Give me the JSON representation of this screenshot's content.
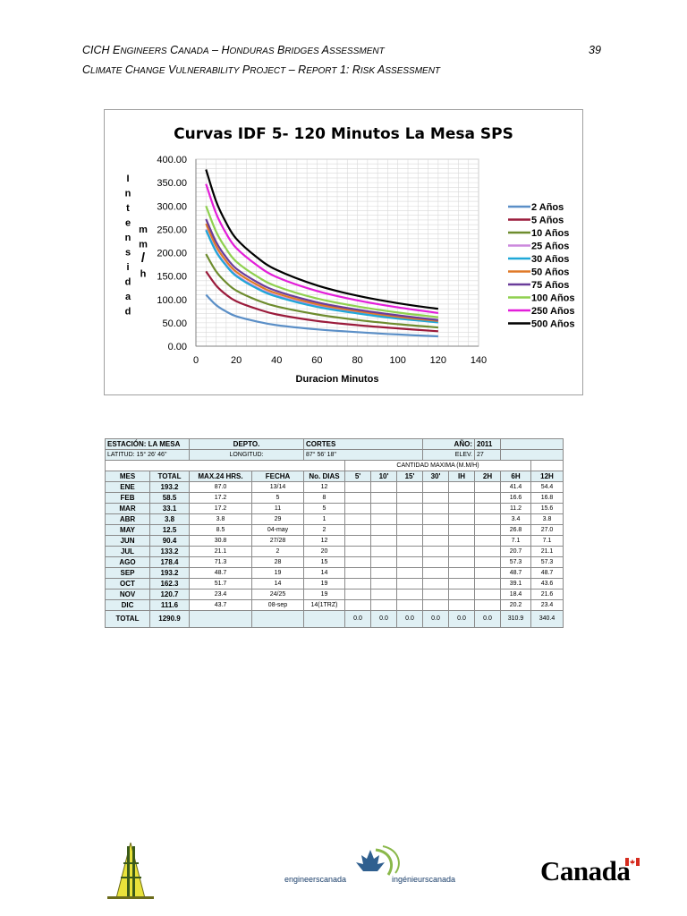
{
  "header": {
    "line1_big_1": "CICH E",
    "line1_sc_1": "ngineers",
    "line1_big_2": " C",
    "line1_sc_2": "anada",
    "line1_mid": " – H",
    "line1_sc_3": "onduras",
    "line1_big_3": " B",
    "line1_sc_4": "ridges",
    "line1_big_4": " A",
    "line1_sc_5": "ssessment",
    "page_number": "39",
    "line2_big_1": "C",
    "line2_sc_1": "limate",
    "line2_big_2": " C",
    "line2_sc_2": "hange",
    "line2_big_3": " V",
    "line2_sc_3": "ulnerability",
    "line2_big_4": " P",
    "line2_sc_4": "roject",
    "line2_big_5": " – R",
    "line2_sc_5": "eport",
    "line2_big_6": " 1: R",
    "line2_sc_6": "isk",
    "line2_big_7": " A",
    "line2_sc_7": "ssessment"
  },
  "chart_data": {
    "type": "line",
    "title": "Curvas IDF 5- 120 Minutos La Mesa SPS",
    "xlabel": "Duracion Minutos",
    "ylabel_left": [
      "I",
      "n",
      "t",
      "e",
      "n",
      "s",
      "i",
      "d",
      "a",
      "d"
    ],
    "ylabel_right": [
      "m",
      "m",
      "/",
      "h"
    ],
    "xlim": [
      0,
      140
    ],
    "ylim": [
      0,
      400
    ],
    "x_ticks": [
      "0",
      "20",
      "40",
      "60",
      "80",
      "100",
      "120",
      "140"
    ],
    "y_ticks": [
      "0.00",
      "50.00",
      "100.00",
      "150.00",
      "200.00",
      "250.00",
      "300.00",
      "350.00",
      "400.00"
    ],
    "grid": true,
    "legend_position": "right",
    "x": [
      5,
      10,
      15,
      20,
      30,
      40,
      60,
      80,
      100,
      120
    ],
    "series": [
      {
        "name": "2 Años",
        "color": "#5b8fc7",
        "values": [
          110,
          88,
          74,
          64,
          53,
          45,
          36,
          30,
          25,
          21
        ]
      },
      {
        "name": "5 Años",
        "color": "#9b1b3b",
        "values": [
          160,
          130,
          110,
          96,
          80,
          68,
          54,
          45,
          38,
          32
        ]
      },
      {
        "name": "10 Años",
        "color": "#6e8c2e",
        "values": [
          197,
          160,
          136,
          119,
          99,
          85,
          68,
          56,
          47,
          40
        ]
      },
      {
        "name": "25 Años",
        "color": "#cc88dd",
        "values": [
          250,
          204,
          174,
          152,
          126,
          108,
          86,
          72,
          61,
          53
        ]
      },
      {
        "name": "30 Años",
        "color": "#1fa8d8",
        "values": [
          248,
          202,
          172,
          150,
          124,
          106,
          84,
          70,
          59,
          51
        ]
      },
      {
        "name": "50 Años",
        "color": "#e07a28",
        "values": [
          262,
          214,
          182,
          159,
          132,
          113,
          90,
          75,
          63,
          54
        ]
      },
      {
        "name": "75 Años",
        "color": "#6a3d9a",
        "values": [
          272,
          223,
          190,
          166,
          138,
          118,
          94,
          78,
          66,
          56
        ]
      },
      {
        "name": "100 Años",
        "color": "#8fd04f",
        "values": [
          300,
          245,
          208,
          181,
          150,
          128,
          102,
          85,
          72,
          62
        ]
      },
      {
        "name": "250 Años",
        "color": "#e31ed9",
        "values": [
          347,
          284,
          241,
          210,
          174,
          148,
          118,
          98,
          83,
          71
        ]
      },
      {
        "name": "500 Años",
        "color": "#000000",
        "values": [
          378,
          310,
          264,
          230,
          191,
          163,
          130,
          108,
          92,
          80
        ]
      }
    ]
  },
  "table": {
    "estacion_label": "ESTACIÓN:",
    "estacion_value": "LA MESA",
    "depto_label": "DEPTO.",
    "depto_value": "CORTES",
    "ano_label": "AÑO:",
    "ano_value": "2011",
    "latitud_label": "LATITUD:",
    "latitud_value": "15° 26' 46\"",
    "longitud_label": "LONGITUD:",
    "longitud_value": "87° 56' 18\"",
    "elev_label": "ELEV.",
    "elev_value": "27",
    "cantidad_label": "CANTIDAD MAXIMA (M.M/H)",
    "columns": [
      "MES",
      "TOTAL",
      "MAX.24 HRS.",
      "FECHA",
      "No. DIAS",
      "5'",
      "10'",
      "15'",
      "30'",
      "IH",
      "2H",
      "6H",
      "12H"
    ],
    "rows": [
      [
        "ENE",
        "193.2",
        "87.0",
        "13/14",
        "12",
        "",
        "",
        "",
        "",
        "",
        "",
        "41.4",
        "54.4"
      ],
      [
        "FEB",
        "58.5",
        "17.2",
        "5",
        "8",
        "",
        "",
        "",
        "",
        "",
        "",
        "16.6",
        "16.8"
      ],
      [
        "MAR",
        "33.1",
        "17.2",
        "11",
        "5",
        "",
        "",
        "",
        "",
        "",
        "",
        "11.2",
        "15.6"
      ],
      [
        "ABR",
        "3.8",
        "3.8",
        "29",
        "1",
        "",
        "",
        "",
        "",
        "",
        "",
        "3.4",
        "3.8"
      ],
      [
        "MAY",
        "12.5",
        "8.5",
        "04-may",
        "2",
        "",
        "",
        "",
        "",
        "",
        "",
        "26.8",
        "27.0"
      ],
      [
        "JUN",
        "90.4",
        "30.8",
        "27/28",
        "12",
        "",
        "",
        "",
        "",
        "",
        "",
        "7.1",
        "7.1"
      ],
      [
        "JUL",
        "133.2",
        "21.1",
        "2",
        "20",
        "",
        "",
        "",
        "",
        "",
        "",
        "20.7",
        "21.1"
      ],
      [
        "AGO",
        "178.4",
        "71.3",
        "28",
        "15",
        "",
        "",
        "",
        "",
        "",
        "",
        "57.3",
        "57.3"
      ],
      [
        "SEP",
        "193.2",
        "48.7",
        "19",
        "14",
        "",
        "",
        "",
        "",
        "",
        "",
        "48.7",
        "48.7"
      ],
      [
        "OCT",
        "162.3",
        "51.7",
        "14",
        "19",
        "",
        "",
        "",
        "",
        "",
        "",
        "39.1",
        "43.6"
      ],
      [
        "NOV",
        "120.7",
        "23.4",
        "24/25",
        "19",
        "",
        "",
        "",
        "",
        "",
        "",
        "18.4",
        "21.6"
      ],
      [
        "DIC",
        "111.6",
        "43.7",
        "08-sep",
        "14(1TRZ)",
        "",
        "",
        "",
        "",
        "",
        "",
        "20.2",
        "23.4"
      ]
    ],
    "total_row": [
      "TOTAL",
      "1290.9",
      "",
      "",
      "",
      "0.0",
      "0.0",
      "0.0",
      "0.0",
      "0.0",
      "0.0",
      "310.9",
      "340.4"
    ]
  },
  "footer": {
    "engineers_left": "engineerscanada",
    "engineers_right": "ingénieurscanada",
    "canada_wordmark": "Canada"
  }
}
